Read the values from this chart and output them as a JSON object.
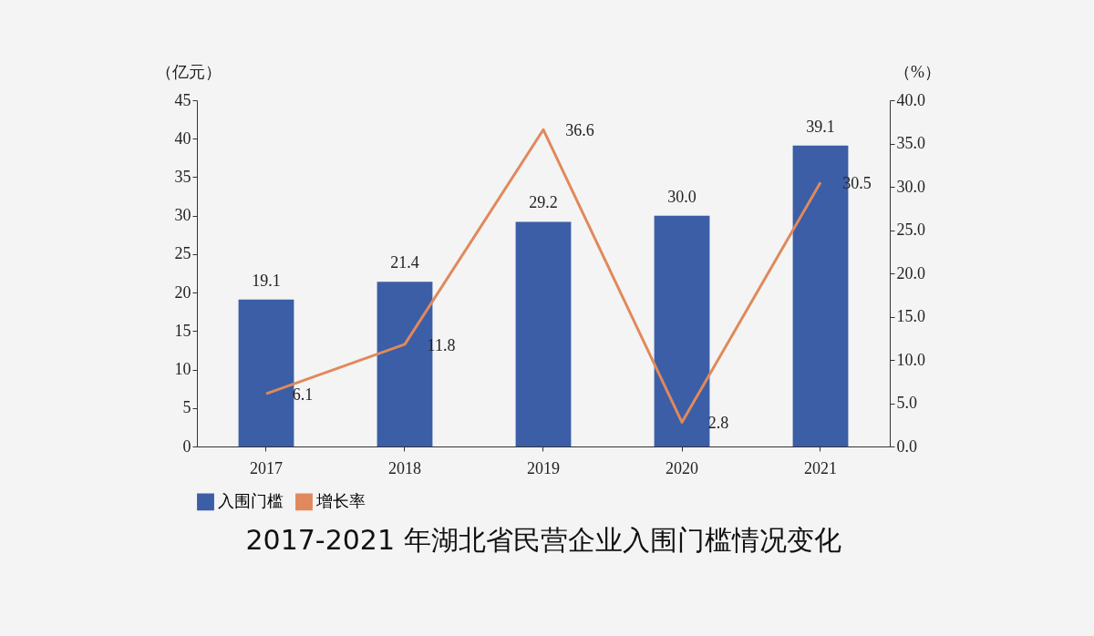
{
  "chart_data": {
    "type": "bar",
    "title": "2017-2021 年湖北省民营企业入围门槛情况变化",
    "ylabel": "（亿元）",
    "y2label": "（%）",
    "categories": [
      "2017",
      "2018",
      "2019",
      "2020",
      "2021"
    ],
    "series": [
      {
        "name": "入围门槛",
        "color": "#3b5ea6",
        "values": [
          19.1,
          21.4,
          29.2,
          30.0,
          39.1
        ],
        "value_labels": [
          "19.1",
          "21.4",
          "29.2",
          "30.0",
          "39.1"
        ]
      },
      {
        "name": "增长率",
        "type": "line",
        "axis": "y2",
        "color": "#e0895c",
        "values": [
          6.1,
          11.8,
          36.6,
          2.8,
          30.5
        ],
        "value_labels": [
          "6.1",
          "11.8",
          "36.6",
          "2.8",
          "30.5"
        ]
      }
    ],
    "ylim": [
      0,
      45
    ],
    "yticks": [
      0,
      5,
      10,
      15,
      20,
      25,
      30,
      35,
      40,
      45
    ],
    "y2lim": [
      0,
      40
    ],
    "y2ticks": [
      {
        "value": 0,
        "label": "0.0"
      },
      {
        "value": 5,
        "label": "5.0"
      },
      {
        "value": 10,
        "label": "10.0"
      },
      {
        "value": 15,
        "label": "15.0"
      },
      {
        "value": 20,
        "label": "20.0"
      },
      {
        "value": 25,
        "label": "25.0"
      },
      {
        "value": 30,
        "label": "30.0"
      },
      {
        "value": 35,
        "label": "35.0"
      },
      {
        "value": 40,
        "label": "40.0"
      }
    ],
    "legend": "bottom",
    "grid": false
  }
}
